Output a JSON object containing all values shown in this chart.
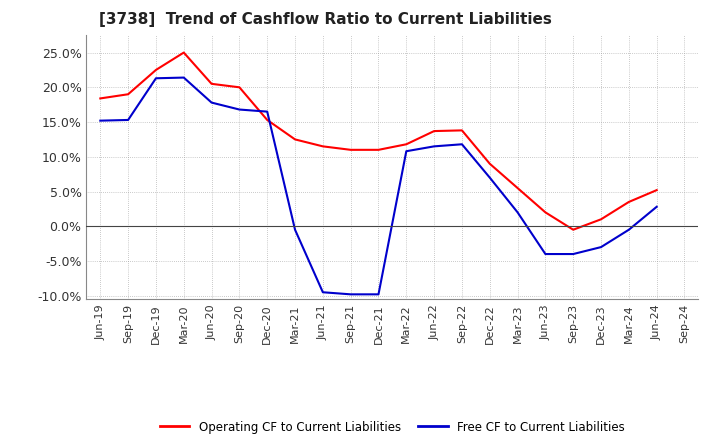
{
  "title": "[3738]  Trend of Cashflow Ratio to Current Liabilities",
  "x_labels": [
    "Jun-19",
    "Sep-19",
    "Dec-19",
    "Mar-20",
    "Jun-20",
    "Sep-20",
    "Dec-20",
    "Mar-21",
    "Jun-21",
    "Sep-21",
    "Dec-21",
    "Mar-22",
    "Jun-22",
    "Sep-22",
    "Dec-22",
    "Mar-23",
    "Jun-23",
    "Sep-23",
    "Dec-23",
    "Mar-24",
    "Jun-24",
    "Sep-24"
  ],
  "operating_cf": [
    0.184,
    0.19,
    0.225,
    0.25,
    0.205,
    0.2,
    0.153,
    0.125,
    0.115,
    0.11,
    0.11,
    0.118,
    0.137,
    0.138,
    0.09,
    0.055,
    0.02,
    -0.005,
    0.01,
    0.035,
    0.052,
    null
  ],
  "free_cf": [
    0.152,
    0.153,
    0.213,
    0.214,
    0.178,
    0.168,
    0.165,
    -0.005,
    -0.095,
    -0.098,
    -0.098,
    0.108,
    0.115,
    0.118,
    0.07,
    0.02,
    -0.04,
    -0.04,
    -0.03,
    -0.005,
    0.028,
    null
  ],
  "ylim": [
    -0.105,
    0.275
  ],
  "yticks": [
    -0.1,
    -0.05,
    0.0,
    0.05,
    0.1,
    0.15,
    0.2,
    0.25
  ],
  "operating_color": "#ff0000",
  "free_color": "#0000cc",
  "background_color": "#ffffff",
  "grid_color": "#999999",
  "legend_operating": "Operating CF to Current Liabilities",
  "legend_free": "Free CF to Current Liabilities",
  "title_fontsize": 11,
  "axis_fontsize": 8
}
